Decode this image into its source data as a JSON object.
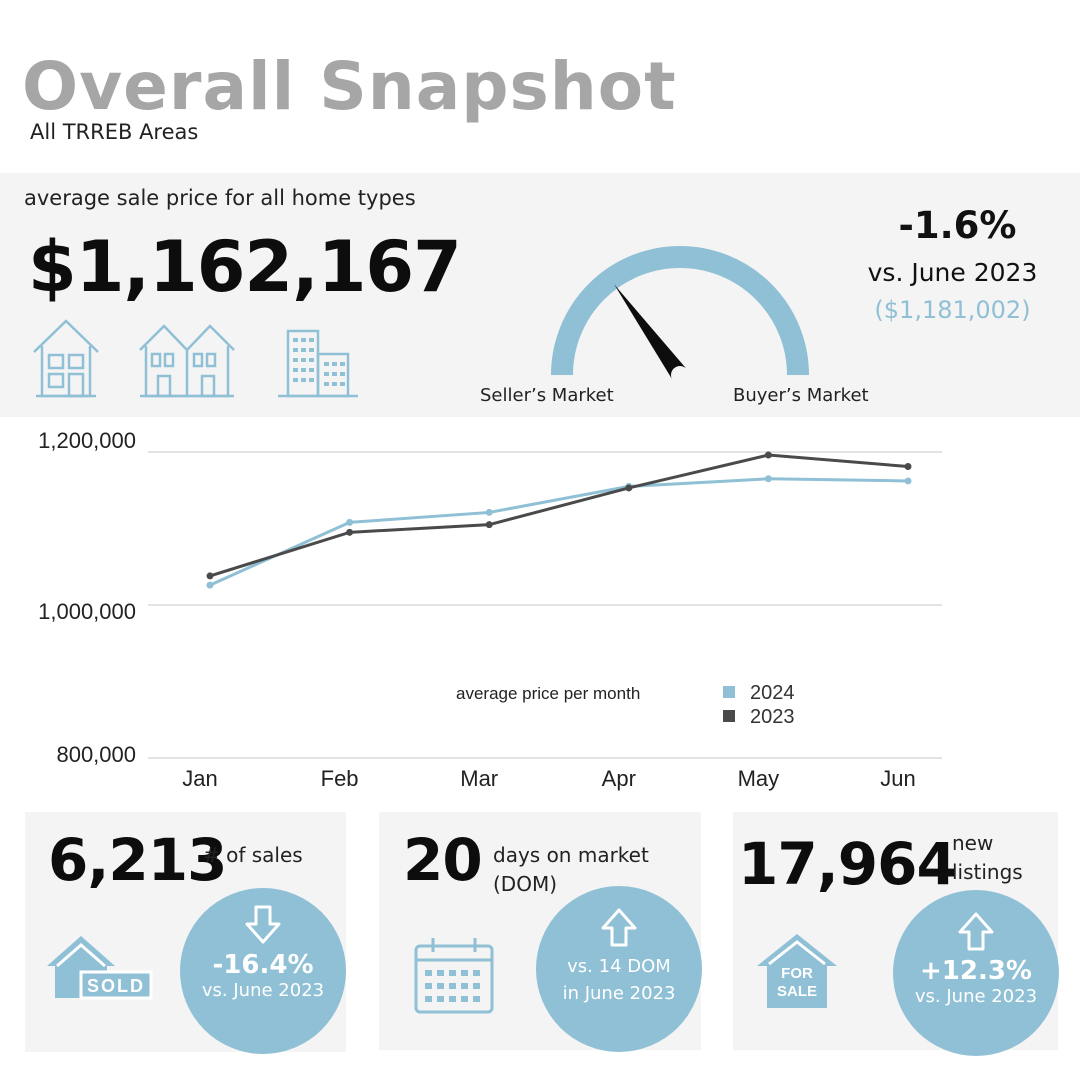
{
  "title": "Overall Snapshot",
  "subtitle": "All TRREB Areas",
  "price": {
    "label": "average sale price for all home types",
    "value": "$1,162,167",
    "change_pct": "-1.6%",
    "change_vs": "vs. June 2023",
    "prev_value": "($1,181,002)"
  },
  "gauge": {
    "left_label": "Seller’s Market",
    "right_label": "Buyer’s Market",
    "needle_fraction": 0.3
  },
  "icons": [
    "house-icon",
    "townhouse-icon",
    "condo-building-icon",
    "sold-sign-icon",
    "calendar-icon",
    "for-sale-sign-icon",
    "arrow-down-icon",
    "arrow-up-icon"
  ],
  "colors": {
    "accent": "#8fc0d5",
    "series_2023": "#4a4a4a",
    "title_grey": "#a6a6a6",
    "panel": "#f4f4f4"
  },
  "chart_data": {
    "type": "line",
    "categories": [
      "Jan",
      "Feb",
      "Mar",
      "Apr",
      "May",
      "Jun"
    ],
    "y_ticks": [
      "1,200,000",
      "1,000,000",
      "800,000"
    ],
    "ylim": [
      800000,
      1200000
    ],
    "legend_title": "average price per month",
    "legend_position": "center-bottom",
    "grid": true,
    "series": [
      {
        "name": "2024",
        "color": "#8fc0d5",
        "values": [
          1026000,
          1108000,
          1121000,
          1155000,
          1165000,
          1162167
        ]
      },
      {
        "name": "2023",
        "color": "#4a4a4a",
        "values": [
          1038000,
          1095000,
          1105000,
          1153000,
          1196000,
          1181002
        ]
      }
    ]
  },
  "stats": {
    "sales": {
      "value": "6,213",
      "label": "# of sales",
      "change": "-16.4%",
      "change_vs": "vs. June 2023",
      "sign_text": "SOLD"
    },
    "dom": {
      "value": "20",
      "label_line1": "days on market",
      "label_line2": "(DOM)",
      "change_line1": "vs. 14 DOM",
      "change_line2": "in June 2023"
    },
    "listings": {
      "value": "17,964",
      "label_line1": "new",
      "label_line2": "listings",
      "change": "+12.3%",
      "change_vs": "vs. June 2023",
      "sign_line1": "FOR",
      "sign_line2": "SALE"
    }
  }
}
